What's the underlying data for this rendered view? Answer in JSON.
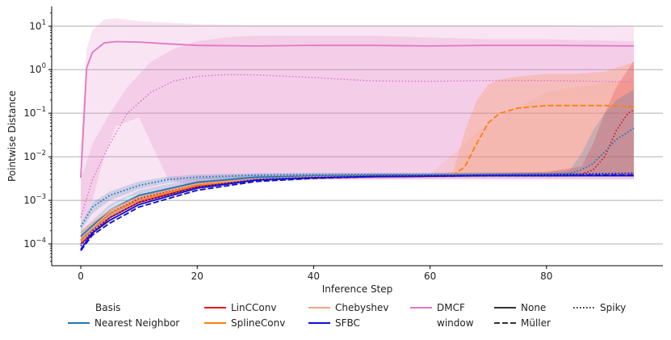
{
  "chart_data": {
    "type": "line",
    "xlabel": "Inference Step",
    "ylabel": "Pointwise Distance",
    "xlim": [
      -5,
      100
    ],
    "xticks": [
      0,
      20,
      40,
      60,
      80
    ],
    "yscale": "log",
    "ylim_exp": [
      -4.5,
      1.45
    ],
    "yticks": [
      {
        "exp": -4,
        "base": "10",
        "sup": "−4"
      },
      {
        "exp": -3,
        "base": "10",
        "sup": "−3"
      },
      {
        "exp": -2,
        "base": "10",
        "sup": "−2"
      },
      {
        "exp": -1,
        "base": "10",
        "sup": "−1"
      },
      {
        "exp": 0,
        "base": "10",
        "sup": "0"
      },
      {
        "exp": 1,
        "base": "10",
        "sup": "1"
      }
    ],
    "grid": "horizontal",
    "legend_position": "bottom",
    "legend": {
      "basis_title": "Basis",
      "bases": [
        {
          "name": "Nearest Neighbor",
          "color": "#1f77b4"
        },
        {
          "name": "LinCConv",
          "color": "#e8141b"
        },
        {
          "name": "SplineConv",
          "color": "#ff7f0e"
        },
        {
          "name": "Chebyshev",
          "color": "#f4a582"
        },
        {
          "name": "SFBC",
          "color": "#0a10d8"
        },
        {
          "name": "DMCF",
          "color": "#e377c2"
        }
      ],
      "window_title": "window",
      "windows": [
        {
          "name": "None",
          "dash": "solid"
        },
        {
          "name": "Müller",
          "dash": "dashed"
        },
        {
          "name": "Spiky",
          "dash": "dotted"
        }
      ]
    },
    "series": [
      {
        "name": "DMCF None",
        "color": "#e377c2",
        "dash": "solid",
        "width": 1.8,
        "x": [
          0,
          1,
          2,
          4,
          6,
          10,
          15,
          20,
          30,
          40,
          50,
          60,
          70,
          80,
          95
        ],
        "y": [
          0.0033,
          1.1,
          2.5,
          4.1,
          4.4,
          4.3,
          3.9,
          3.6,
          3.5,
          3.6,
          3.6,
          3.5,
          3.6,
          3.6,
          3.5
        ],
        "band_lo": [
          0.0003,
          0.0005,
          0.001,
          0.01,
          0.05,
          0.08,
          0.003,
          0.002,
          0.003,
          0.003,
          0.003,
          0.003,
          0.003,
          0.003,
          0.003
        ],
        "band_hi": [
          0.02,
          3,
          8,
          14,
          15,
          13,
          12,
          11,
          10.5,
          10.5,
          10.5,
          10.5,
          10.5,
          10.5,
          10
        ]
      },
      {
        "name": "DMCF Spiky",
        "color": "#e377c2",
        "dash": "dotted",
        "width": 1.5,
        "x": [
          0,
          2,
          5,
          8,
          12,
          16,
          20,
          25,
          30,
          40,
          50,
          60,
          70,
          80,
          95
        ],
        "y": [
          0.0004,
          0.003,
          0.02,
          0.1,
          0.3,
          0.55,
          0.7,
          0.77,
          0.76,
          0.66,
          0.55,
          0.54,
          0.56,
          0.56,
          0.52
        ],
        "band_lo": [
          0.0001,
          0.0003,
          0.0007,
          0.0012,
          0.0016,
          0.002,
          0.0022,
          0.0025,
          0.003,
          0.003,
          0.003,
          0.003,
          0.003,
          0.003,
          0.003
        ],
        "band_hi": [
          0.003,
          0.02,
          0.1,
          0.4,
          1.5,
          3,
          4.5,
          5.5,
          6,
          6,
          6,
          5.5,
          5,
          5,
          4.5
        ]
      },
      {
        "name": "SplineConv Müller",
        "color": "#ff7f0e",
        "dash": "dashed",
        "width": 1.8,
        "x": [
          0,
          5,
          10,
          20,
          30,
          40,
          50,
          60,
          64,
          66,
          68,
          70,
          72,
          75,
          80,
          85,
          90,
          95
        ],
        "y": [
          0.0001,
          0.0004,
          0.0009,
          0.002,
          0.003,
          0.0034,
          0.0036,
          0.0037,
          0.0038,
          0.006,
          0.02,
          0.06,
          0.1,
          0.13,
          0.15,
          0.15,
          0.15,
          0.14
        ],
        "band_lo": [
          8e-05,
          0.0003,
          0.0007,
          0.0016,
          0.0026,
          0.003,
          0.0032,
          0.0033,
          0.0034,
          0.0036,
          0.0038,
          0.004,
          0.004,
          0.004,
          0.004,
          0.004,
          0.004,
          0.004
        ],
        "band_hi": [
          0.00013,
          0.0005,
          0.0011,
          0.0025,
          0.0035,
          0.0038,
          0.004,
          0.004,
          0.0045,
          0.04,
          0.2,
          0.45,
          0.6,
          0.7,
          0.8,
          0.8,
          0.9,
          1.5
        ]
      },
      {
        "name": "Chebyshev Müller",
        "color": "#f4a582",
        "dash": "dashed",
        "width": 1.5,
        "x": [
          0,
          5,
          10,
          20,
          30,
          40,
          50,
          60,
          70,
          80,
          90,
          95
        ],
        "y": [
          0.00015,
          0.0005,
          0.001,
          0.0022,
          0.003,
          0.0034,
          0.0036,
          0.0037,
          0.0038,
          0.0039,
          0.004,
          0.004
        ],
        "band_lo": [
          0.0001,
          0.0004,
          0.0008,
          0.0018,
          0.0026,
          0.003,
          0.0032,
          0.0033,
          0.0034,
          0.0034,
          0.0034,
          0.0034
        ],
        "band_hi": [
          0.0002,
          0.0006,
          0.0013,
          0.0027,
          0.0035,
          0.0039,
          0.004,
          0.004,
          0.06,
          0.3,
          0.5,
          0.6
        ]
      },
      {
        "name": "LinCConv Spiky",
        "color": "#e8141b",
        "dash": "dotted",
        "width": 1.8,
        "x": [
          0,
          5,
          10,
          20,
          30,
          40,
          50,
          60,
          70,
          80,
          86,
          88,
          90,
          92,
          94,
          95
        ],
        "y": [
          0.00012,
          0.0005,
          0.0011,
          0.0024,
          0.0031,
          0.0035,
          0.0036,
          0.0037,
          0.0038,
          0.0039,
          0.004,
          0.005,
          0.01,
          0.04,
          0.1,
          0.12
        ],
        "band_lo": [
          0.0001,
          0.0004,
          0.0009,
          0.002,
          0.0028,
          0.0031,
          0.0032,
          0.0033,
          0.0034,
          0.0034,
          0.0035,
          0.0035,
          0.0035,
          0.0035,
          0.0035,
          0.0035
        ],
        "band_hi": [
          0.00015,
          0.0006,
          0.0013,
          0.0028,
          0.0034,
          0.0038,
          0.004,
          0.004,
          0.0042,
          0.0045,
          0.006,
          0.02,
          0.1,
          0.4,
          1.0,
          1.6
        ]
      },
      {
        "name": "LinCConv None",
        "color": "#e8141b",
        "dash": "solid",
        "width": 1.8,
        "x": [
          0,
          5,
          10,
          20,
          30,
          40,
          50,
          60,
          70,
          80,
          90,
          95
        ],
        "y": [
          0.0001,
          0.0004,
          0.0009,
          0.0021,
          0.003,
          0.0034,
          0.0036,
          0.0037,
          0.0038,
          0.0039,
          0.0039,
          0.004
        ],
        "band_lo": [],
        "band_hi": []
      },
      {
        "name": "Nearest Neighbor Spiky",
        "color": "#1f77b4",
        "dash": "dotted",
        "width": 1.8,
        "x": [
          0,
          2,
          5,
          10,
          15,
          20,
          30,
          40,
          50,
          60,
          70,
          80,
          84,
          86,
          88,
          90,
          92,
          95
        ],
        "y": [
          0.00025,
          0.0007,
          0.0013,
          0.0022,
          0.003,
          0.0034,
          0.0038,
          0.0039,
          0.0039,
          0.0039,
          0.004,
          0.004,
          0.0042,
          0.005,
          0.007,
          0.013,
          0.025,
          0.045
        ],
        "band_lo": [
          0.0002,
          0.0005,
          0.001,
          0.0018,
          0.0025,
          0.003,
          0.0034,
          0.0035,
          0.0035,
          0.0035,
          0.0035,
          0.0035,
          0.0035,
          0.0035,
          0.0035,
          0.0035,
          0.0035,
          0.0035
        ],
        "band_hi": [
          0.0003,
          0.0009,
          0.0016,
          0.0027,
          0.0035,
          0.0039,
          0.0042,
          0.0043,
          0.0043,
          0.0043,
          0.0044,
          0.0044,
          0.005,
          0.012,
          0.04,
          0.1,
          0.2,
          0.35
        ]
      },
      {
        "name": "Nearest Neighbor None",
        "color": "#1f77b4",
        "dash": "solid",
        "width": 1.8,
        "x": [
          0,
          5,
          10,
          20,
          30,
          40,
          50,
          60,
          70,
          80,
          90,
          95
        ],
        "y": [
          0.00015,
          0.0006,
          0.0013,
          0.0026,
          0.0034,
          0.0036,
          0.0037,
          0.0038,
          0.0038,
          0.0039,
          0.0039,
          0.0039
        ],
        "band_lo": [
          0.0001,
          0.0004,
          0.001,
          0.002,
          0.003,
          0.0032,
          0.0033,
          0.0034,
          0.0034,
          0.0034,
          0.0034,
          0.0034
        ],
        "band_hi": [
          0.0002,
          0.0008,
          0.0017,
          0.0032,
          0.0038,
          0.004,
          0.0041,
          0.0042,
          0.0042,
          0.0043,
          0.0043,
          0.0043
        ]
      },
      {
        "name": "SplineConv None",
        "color": "#ff7f0e",
        "dash": "solid",
        "width": 1.5,
        "x": [
          0,
          5,
          10,
          20,
          30,
          40,
          50,
          60,
          70,
          80,
          90,
          95
        ],
        "y": [
          0.00012,
          0.0005,
          0.001,
          0.0022,
          0.003,
          0.0034,
          0.0036,
          0.0037,
          0.0038,
          0.0038,
          0.0039,
          0.0039
        ],
        "band_lo": [],
        "band_hi": []
      },
      {
        "name": "Chebyshev None",
        "color": "#f4a582",
        "dash": "solid",
        "width": 1.5,
        "x": [
          0,
          5,
          10,
          20,
          30,
          40,
          50,
          60,
          70,
          80,
          90,
          95
        ],
        "y": [
          0.00018,
          0.0006,
          0.0012,
          0.0024,
          0.0031,
          0.0035,
          0.0036,
          0.0037,
          0.0038,
          0.0038,
          0.0039,
          0.0039
        ],
        "band_lo": [],
        "band_hi": []
      },
      {
        "name": "SFBC Müller",
        "color": "#0a10d8",
        "dash": "dashed",
        "width": 1.8,
        "x": [
          0,
          2,
          5,
          10,
          20,
          30,
          40,
          50,
          60,
          70,
          80,
          90,
          95
        ],
        "y": [
          7e-05,
          0.00016,
          0.0003,
          0.0007,
          0.0017,
          0.0027,
          0.0032,
          0.0035,
          0.0036,
          0.0037,
          0.0037,
          0.0038,
          0.0038
        ],
        "band_lo": [],
        "band_hi": []
      },
      {
        "name": "SFBC None",
        "color": "#0a10d8",
        "dash": "solid",
        "width": 1.8,
        "x": [
          0,
          2,
          5,
          10,
          20,
          30,
          40,
          50,
          60,
          70,
          80,
          90,
          95
        ],
        "y": [
          7.5e-05,
          0.00018,
          0.00035,
          0.0008,
          0.0019,
          0.0029,
          0.0033,
          0.0035,
          0.0036,
          0.0037,
          0.0037,
          0.0037,
          0.0037
        ],
        "band_lo": [],
        "band_hi": []
      },
      {
        "name": "SFBC Spiky",
        "color": "#0a10d8",
        "dash": "dotted",
        "width": 1.8,
        "x": [
          0,
          2,
          5,
          10,
          20,
          30,
          40,
          50,
          60,
          70,
          80,
          90,
          95
        ],
        "y": [
          9e-05,
          0.0002,
          0.0004,
          0.0009,
          0.002,
          0.003,
          0.0034,
          0.0036,
          0.0037,
          0.0038,
          0.0039,
          0.0041,
          0.0042
        ],
        "band_lo": [],
        "band_hi": []
      }
    ]
  }
}
